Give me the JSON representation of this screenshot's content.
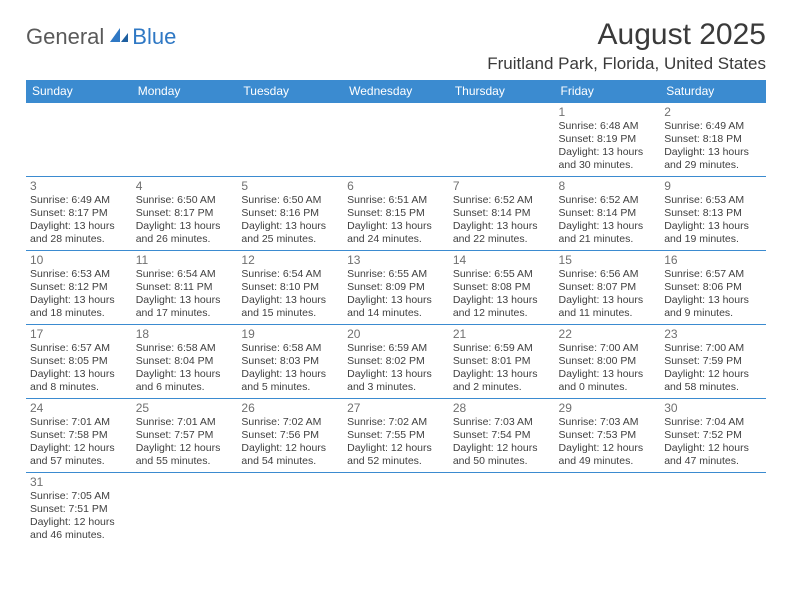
{
  "logo": {
    "text1": "General",
    "text2": "Blue"
  },
  "title": "August 2025",
  "location": "Fruitland Park, Florida, United States",
  "colors": {
    "header_bg": "#3b8bd0",
    "header_text": "#ffffff",
    "border": "#3b8bd0",
    "daynum": "#707070",
    "info": "#404040",
    "logo_gray": "#5a5a5a",
    "logo_blue": "#2f78c4"
  },
  "weekdays": [
    "Sunday",
    "Monday",
    "Tuesday",
    "Wednesday",
    "Thursday",
    "Friday",
    "Saturday"
  ],
  "weeks": [
    [
      null,
      null,
      null,
      null,
      null,
      {
        "n": "1",
        "sr": "6:48 AM",
        "ss": "8:19 PM",
        "dl": "13 hours and 30 minutes."
      },
      {
        "n": "2",
        "sr": "6:49 AM",
        "ss": "8:18 PM",
        "dl": "13 hours and 29 minutes."
      }
    ],
    [
      {
        "n": "3",
        "sr": "6:49 AM",
        "ss": "8:17 PM",
        "dl": "13 hours and 28 minutes."
      },
      {
        "n": "4",
        "sr": "6:50 AM",
        "ss": "8:17 PM",
        "dl": "13 hours and 26 minutes."
      },
      {
        "n": "5",
        "sr": "6:50 AM",
        "ss": "8:16 PM",
        "dl": "13 hours and 25 minutes."
      },
      {
        "n": "6",
        "sr": "6:51 AM",
        "ss": "8:15 PM",
        "dl": "13 hours and 24 minutes."
      },
      {
        "n": "7",
        "sr": "6:52 AM",
        "ss": "8:14 PM",
        "dl": "13 hours and 22 minutes."
      },
      {
        "n": "8",
        "sr": "6:52 AM",
        "ss": "8:14 PM",
        "dl": "13 hours and 21 minutes."
      },
      {
        "n": "9",
        "sr": "6:53 AM",
        "ss": "8:13 PM",
        "dl": "13 hours and 19 minutes."
      }
    ],
    [
      {
        "n": "10",
        "sr": "6:53 AM",
        "ss": "8:12 PM",
        "dl": "13 hours and 18 minutes."
      },
      {
        "n": "11",
        "sr": "6:54 AM",
        "ss": "8:11 PM",
        "dl": "13 hours and 17 minutes."
      },
      {
        "n": "12",
        "sr": "6:54 AM",
        "ss": "8:10 PM",
        "dl": "13 hours and 15 minutes."
      },
      {
        "n": "13",
        "sr": "6:55 AM",
        "ss": "8:09 PM",
        "dl": "13 hours and 14 minutes."
      },
      {
        "n": "14",
        "sr": "6:55 AM",
        "ss": "8:08 PM",
        "dl": "13 hours and 12 minutes."
      },
      {
        "n": "15",
        "sr": "6:56 AM",
        "ss": "8:07 PM",
        "dl": "13 hours and 11 minutes."
      },
      {
        "n": "16",
        "sr": "6:57 AM",
        "ss": "8:06 PM",
        "dl": "13 hours and 9 minutes."
      }
    ],
    [
      {
        "n": "17",
        "sr": "6:57 AM",
        "ss": "8:05 PM",
        "dl": "13 hours and 8 minutes."
      },
      {
        "n": "18",
        "sr": "6:58 AM",
        "ss": "8:04 PM",
        "dl": "13 hours and 6 minutes."
      },
      {
        "n": "19",
        "sr": "6:58 AM",
        "ss": "8:03 PM",
        "dl": "13 hours and 5 minutes."
      },
      {
        "n": "20",
        "sr": "6:59 AM",
        "ss": "8:02 PM",
        "dl": "13 hours and 3 minutes."
      },
      {
        "n": "21",
        "sr": "6:59 AM",
        "ss": "8:01 PM",
        "dl": "13 hours and 2 minutes."
      },
      {
        "n": "22",
        "sr": "7:00 AM",
        "ss": "8:00 PM",
        "dl": "13 hours and 0 minutes."
      },
      {
        "n": "23",
        "sr": "7:00 AM",
        "ss": "7:59 PM",
        "dl": "12 hours and 58 minutes."
      }
    ],
    [
      {
        "n": "24",
        "sr": "7:01 AM",
        "ss": "7:58 PM",
        "dl": "12 hours and 57 minutes."
      },
      {
        "n": "25",
        "sr": "7:01 AM",
        "ss": "7:57 PM",
        "dl": "12 hours and 55 minutes."
      },
      {
        "n": "26",
        "sr": "7:02 AM",
        "ss": "7:56 PM",
        "dl": "12 hours and 54 minutes."
      },
      {
        "n": "27",
        "sr": "7:02 AM",
        "ss": "7:55 PM",
        "dl": "12 hours and 52 minutes."
      },
      {
        "n": "28",
        "sr": "7:03 AM",
        "ss": "7:54 PM",
        "dl": "12 hours and 50 minutes."
      },
      {
        "n": "29",
        "sr": "7:03 AM",
        "ss": "7:53 PM",
        "dl": "12 hours and 49 minutes."
      },
      {
        "n": "30",
        "sr": "7:04 AM",
        "ss": "7:52 PM",
        "dl": "12 hours and 47 minutes."
      }
    ],
    [
      {
        "n": "31",
        "sr": "7:05 AM",
        "ss": "7:51 PM",
        "dl": "12 hours and 46 minutes."
      },
      null,
      null,
      null,
      null,
      null,
      null
    ]
  ],
  "labels": {
    "sunrise": "Sunrise: ",
    "sunset": "Sunset: ",
    "daylight": "Daylight: "
  }
}
